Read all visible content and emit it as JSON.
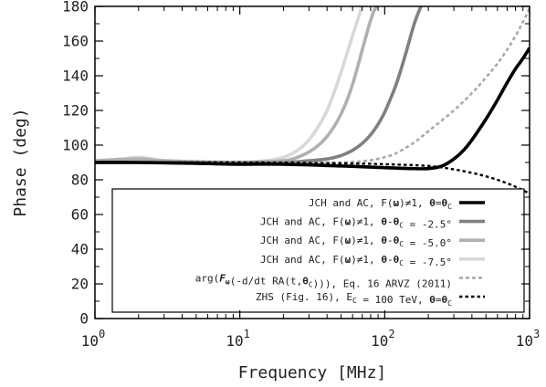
{
  "chart_data": {
    "type": "line",
    "xlabel": "Frequency [MHz]",
    "ylabel": "Phase (deg)",
    "x_scale": "log",
    "xlim": [
      1,
      1000
    ],
    "ylim": [
      0,
      180
    ],
    "x_ticks": [
      {
        "value": 1,
        "base": "10",
        "exp": "0"
      },
      {
        "value": 10,
        "base": "10",
        "exp": "1"
      },
      {
        "value": 100,
        "base": "10",
        "exp": "2"
      },
      {
        "value": 1000,
        "base": "10",
        "exp": "3"
      }
    ],
    "y_ticks": [
      0,
      20,
      40,
      60,
      80,
      100,
      120,
      140,
      160,
      180
    ],
    "grid": false,
    "legend_position": "lower-right",
    "series": [
      {
        "name": "JCH and AC, F(ω)≠1, θ=θ_C",
        "legend_parts": [
          {
            "t": "JCH and AC, F("
          },
          {
            "t": "ω",
            "b": true
          },
          {
            "t": ")≠1, "
          },
          {
            "t": "θ",
            "b": true
          },
          {
            "t": "="
          },
          {
            "t": "θ",
            "b": true
          },
          {
            "t": "C",
            "sub": true
          }
        ],
        "color": "#000000",
        "dash": "",
        "width": 3.6,
        "x": [
          1,
          2,
          5,
          10,
          20,
          50,
          100,
          150,
          200,
          250,
          300,
          350,
          400,
          500,
          600,
          700,
          800,
          900,
          1000
        ],
        "y": [
          90,
          90,
          89.5,
          89,
          89,
          88,
          87,
          86.5,
          86.5,
          88,
          92,
          97,
          103,
          115,
          126,
          136,
          144,
          150,
          156
        ]
      },
      {
        "name": "JCH and AC, F(ω)≠1, θ-θ_C = -2.5°",
        "legend_parts": [
          {
            "t": "JCH and AC, F("
          },
          {
            "t": "ω",
            "b": true
          },
          {
            "t": ")≠1, "
          },
          {
            "t": "θ",
            "b": true
          },
          {
            "t": "-"
          },
          {
            "t": "θ",
            "b": true
          },
          {
            "t": "C",
            "sub": true
          },
          {
            "t": " = -2.5°"
          }
        ],
        "color": "#808080",
        "dash": "",
        "width": 3.6,
        "x": [
          1,
          10,
          20,
          30,
          40,
          50,
          60,
          70,
          80,
          90,
          100,
          110,
          120,
          130,
          140,
          150,
          160,
          170,
          180
        ],
        "y": [
          90,
          90,
          90,
          91,
          92,
          94,
          97,
          101,
          106,
          112,
          119,
          127,
          135,
          144,
          153,
          162,
          170,
          176,
          181
        ]
      },
      {
        "name": "JCH and AC, F(ω)≠1, θ-θ_C = -5.0°",
        "legend_parts": [
          {
            "t": "JCH and AC, F("
          },
          {
            "t": "ω",
            "b": true
          },
          {
            "t": ")≠1, "
          },
          {
            "t": "θ",
            "b": true
          },
          {
            "t": "-"
          },
          {
            "t": "θ",
            "b": true
          },
          {
            "t": "C",
            "sub": true
          },
          {
            "t": " = -5.0°"
          }
        ],
        "color": "#b0b0b0",
        "dash": "",
        "width": 3.6,
        "x": [
          1,
          2,
          3,
          10,
          20,
          25,
          30,
          35,
          40,
          45,
          50,
          55,
          60,
          65,
          70,
          75,
          80,
          85,
          90
        ],
        "y": [
          91,
          92,
          91,
          90,
          91,
          93,
          96,
          100,
          105,
          111,
          118,
          126,
          135,
          145,
          155,
          164,
          172,
          178,
          181
        ]
      },
      {
        "name": "JCH and AC, F(ω)≠1, θ-θ_C = -7.5°",
        "legend_parts": [
          {
            "t": "JCH and AC, F("
          },
          {
            "t": "ω",
            "b": true
          },
          {
            "t": ")≠1, "
          },
          {
            "t": "θ",
            "b": true
          },
          {
            "t": "-"
          },
          {
            "t": "θ",
            "b": true
          },
          {
            "t": "C",
            "sub": true
          },
          {
            "t": " = -7.5°"
          }
        ],
        "color": "#d8d8d8",
        "dash": "",
        "width": 3.6,
        "x": [
          1,
          1.5,
          2,
          2.5,
          3,
          5,
          10,
          15,
          20,
          25,
          30,
          35,
          40,
          45,
          50,
          55,
          60,
          65,
          70
        ],
        "y": [
          91,
          92,
          93,
          92,
          91,
          90,
          90,
          91,
          93,
          97,
          103,
          111,
          120,
          131,
          142,
          153,
          163,
          172,
          181
        ]
      },
      {
        "name": "arg(F_ω(-d/dt RA(t,θ_C))), Eq. 16 ARVZ (2011)",
        "legend_parts": [
          {
            "t": "arg("
          },
          {
            "t": "F",
            "b": true,
            "i": true
          },
          {
            "t": "ω",
            "sub": true,
            "b": true
          },
          {
            "t": "(-d/dt RA(t,"
          },
          {
            "t": "θ",
            "b": true
          },
          {
            "t": "C",
            "sub": true
          },
          {
            "t": "))), Eq. 16 ARVZ (2011)"
          }
        ],
        "color": "#aaaaaa",
        "dash": "4 3",
        "width": 2.6,
        "x": [
          1,
          10,
          50,
          100,
          150,
          200,
          300,
          400,
          500,
          600,
          700,
          800,
          900,
          1000
        ],
        "y": [
          90,
          90,
          90,
          93,
          100,
          108,
          120,
          130,
          139,
          147,
          155,
          163,
          171,
          179
        ]
      },
      {
        "name": "ZHS (Fig. 16), E_C = 100 TeV, θ=θ_C",
        "legend_parts": [
          {
            "t": "ZHS (Fig. 16), E"
          },
          {
            "t": "C",
            "sub": true
          },
          {
            "t": " = 100 TeV, "
          },
          {
            "t": "θ",
            "b": true
          },
          {
            "t": "="
          },
          {
            "t": "θ",
            "b": true
          },
          {
            "t": "C",
            "sub": true
          }
        ],
        "color": "#000000",
        "dash": "3.5 3",
        "width": 2.4,
        "x": [
          1,
          10,
          50,
          100,
          200,
          300,
          400,
          500,
          600,
          700,
          800,
          900,
          1000
        ],
        "y": [
          90,
          90,
          89.5,
          89,
          88,
          86,
          84,
          82,
          80,
          78,
          76,
          74,
          72
        ]
      }
    ]
  }
}
